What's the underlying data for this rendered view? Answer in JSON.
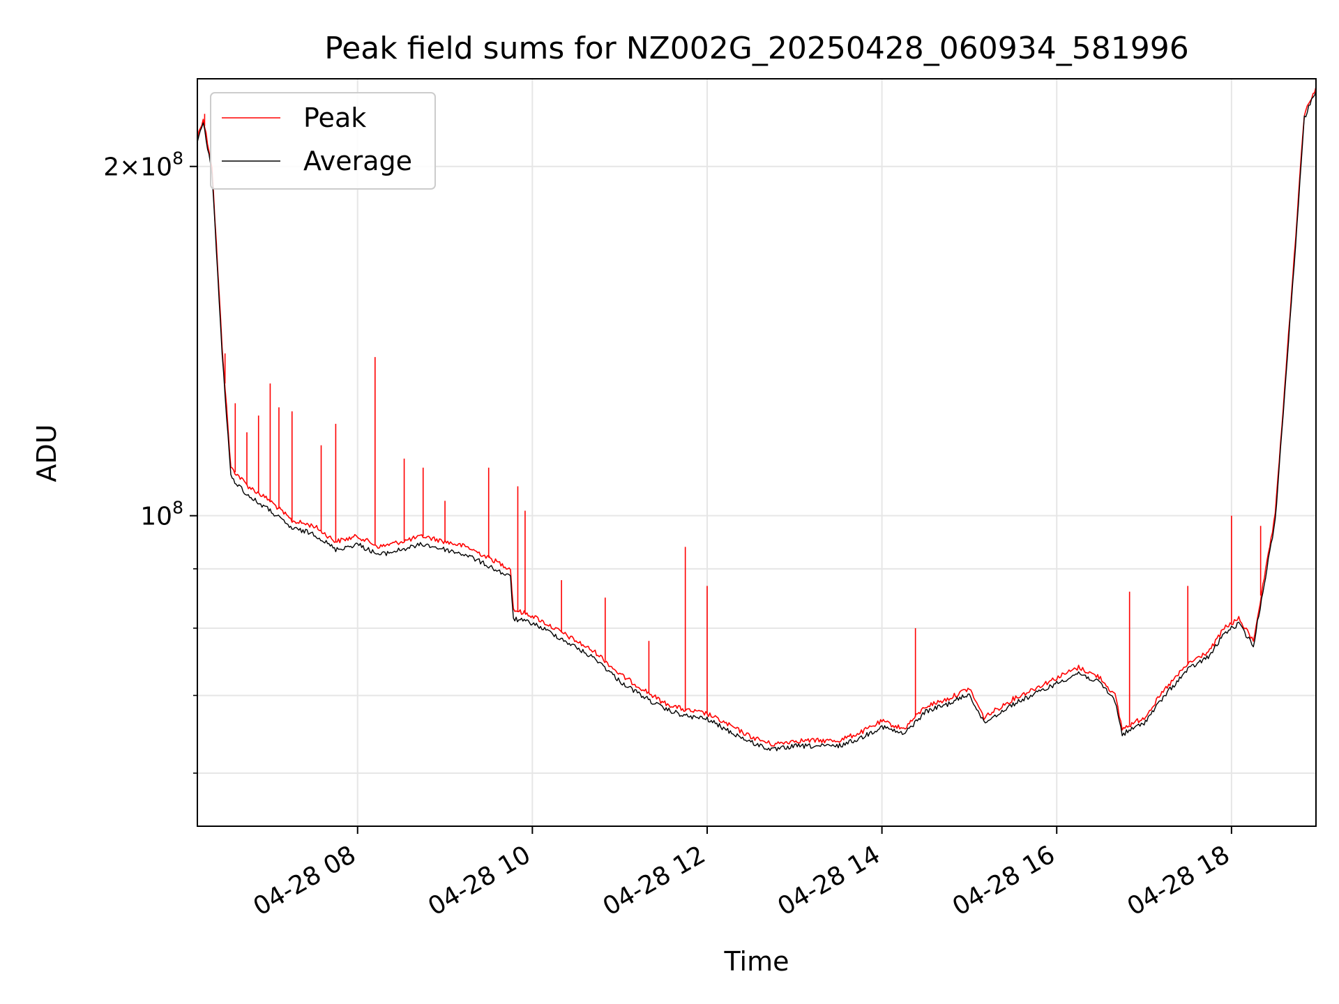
{
  "chart_data": {
    "type": "line",
    "title": "Peak field sums for NZ002G_20250428_060934_581996",
    "xlabel": "Time",
    "ylabel": "ADU",
    "y_scale": "log",
    "ylim": [
      54000000,
      238000000
    ],
    "x_range": [
      "2025-04-28 06:10",
      "2025-04-28 18:58"
    ],
    "x_ticks": [
      "04-28 08",
      "04-28 10",
      "04-28 12",
      "04-28 14",
      "04-28 16",
      "04-28 18"
    ],
    "y_tick_labels": [
      {
        "value": 200000000,
        "mantissa": "2",
        "times": "×",
        "base": "10",
        "exp": "8"
      },
      {
        "value": 100000000,
        "base": "10",
        "exp": "8"
      }
    ],
    "y_minor_ticks": [
      60000000,
      70000000,
      80000000,
      90000000
    ],
    "grid": true,
    "legend_position": "top-left",
    "series": [
      {
        "name": "Peak",
        "color": "#ff0000",
        "points": [
          [
            "2025-04-28 06:10",
            212000000
          ],
          [
            "2025-04-28 06:14",
            220000000
          ],
          [
            "2025-04-28 06:20",
            200000000
          ],
          [
            "2025-04-28 06:27",
            140000000
          ],
          [
            "2025-04-28 06:33",
            110000000
          ],
          [
            "2025-04-28 06:45",
            106000000
          ],
          [
            "2025-04-28 07:00",
            103000000
          ],
          [
            "2025-04-28 07:15",
            99000000
          ],
          [
            "2025-04-28 07:30",
            98000000
          ],
          [
            "2025-04-28 07:45",
            95000000
          ],
          [
            "2025-04-28 08:00",
            96000000
          ],
          [
            "2025-04-28 08:15",
            94000000
          ],
          [
            "2025-04-28 08:30",
            95000000
          ],
          [
            "2025-04-28 08:45",
            96000000
          ],
          [
            "2025-04-28 09:00",
            95000000
          ],
          [
            "2025-04-28 09:15",
            94000000
          ],
          [
            "2025-04-28 09:30",
            92000000
          ],
          [
            "2025-04-28 09:45",
            90000000
          ],
          [
            "2025-04-28 09:47",
            83000000
          ],
          [
            "2025-04-28 10:00",
            82000000
          ],
          [
            "2025-04-28 10:15",
            80000000
          ],
          [
            "2025-04-28 10:30",
            78000000
          ],
          [
            "2025-04-28 10:45",
            76000000
          ],
          [
            "2025-04-28 11:00",
            73000000
          ],
          [
            "2025-04-28 11:15",
            71000000
          ],
          [
            "2025-04-28 11:30",
            69000000
          ],
          [
            "2025-04-28 11:45",
            68000000
          ],
          [
            "2025-04-28 12:00",
            67500000
          ],
          [
            "2025-04-28 12:15",
            66000000
          ],
          [
            "2025-04-28 12:30",
            64500000
          ],
          [
            "2025-04-28 12:45",
            63500000
          ],
          [
            "2025-04-28 13:00",
            64000000
          ],
          [
            "2025-04-28 13:15",
            64000000
          ],
          [
            "2025-04-28 13:30",
            64000000
          ],
          [
            "2025-04-28 13:45",
            65000000
          ],
          [
            "2025-04-28 14:00",
            66500000
          ],
          [
            "2025-04-28 14:15",
            65500000
          ],
          [
            "2025-04-28 14:30",
            68500000
          ],
          [
            "2025-04-28 14:45",
            69500000
          ],
          [
            "2025-04-28 15:00",
            71000000
          ],
          [
            "2025-04-28 15:10",
            67000000
          ],
          [
            "2025-04-28 15:30",
            69500000
          ],
          [
            "2025-04-28 15:45",
            71000000
          ],
          [
            "2025-04-28 16:00",
            72500000
          ],
          [
            "2025-04-28 16:15",
            74000000
          ],
          [
            "2025-04-28 16:30",
            72500000
          ],
          [
            "2025-04-28 16:40",
            70000000
          ],
          [
            "2025-04-28 16:45",
            65500000
          ],
          [
            "2025-04-28 17:00",
            67000000
          ],
          [
            "2025-04-28 17:15",
            71000000
          ],
          [
            "2025-04-28 17:30",
            74500000
          ],
          [
            "2025-04-28 17:45",
            76500000
          ],
          [
            "2025-04-28 17:55",
            80000000
          ],
          [
            "2025-04-28 18:05",
            81500000
          ],
          [
            "2025-04-28 18:15",
            78000000
          ],
          [
            "2025-04-28 18:30",
            100000000
          ],
          [
            "2025-04-28 18:42",
            160000000
          ],
          [
            "2025-04-28 18:50",
            222000000
          ],
          [
            "2025-04-28 18:58",
            234000000
          ]
        ],
        "spikes": [
          [
            "2025-04-28 06:15",
            222000000
          ],
          [
            "2025-04-28 06:29",
            138000000
          ],
          [
            "2025-04-28 06:36",
            125000000
          ],
          [
            "2025-04-28 06:44",
            118000000
          ],
          [
            "2025-04-28 06:52",
            122000000
          ],
          [
            "2025-04-28 07:00",
            130000000
          ],
          [
            "2025-04-28 07:06",
            124000000
          ],
          [
            "2025-04-28 07:15",
            123000000
          ],
          [
            "2025-04-28 07:35",
            115000000
          ],
          [
            "2025-04-28 07:45",
            120000000
          ],
          [
            "2025-04-28 08:12",
            137000000
          ],
          [
            "2025-04-28 08:32",
            112000000
          ],
          [
            "2025-04-28 08:45",
            110000000
          ],
          [
            "2025-04-28 09:00",
            103000000
          ],
          [
            "2025-04-28 09:30",
            110000000
          ],
          [
            "2025-04-28 09:50",
            106000000
          ],
          [
            "2025-04-28 09:55",
            101000000
          ],
          [
            "2025-04-28 10:20",
            88000000
          ],
          [
            "2025-04-28 10:50",
            85000000
          ],
          [
            "2025-04-28 11:20",
            78000000
          ],
          [
            "2025-04-28 11:45",
            94000000
          ],
          [
            "2025-04-28 12:00",
            87000000
          ],
          [
            "2025-04-28 14:23",
            80000000
          ],
          [
            "2025-04-28 16:50",
            86000000
          ],
          [
            "2025-04-28 17:30",
            87000000
          ],
          [
            "2025-04-28 18:00",
            100000000
          ],
          [
            "2025-04-28 18:20",
            98000000
          ]
        ]
      },
      {
        "name": "Average",
        "color": "#000000",
        "points": [
          [
            "2025-04-28 06:10",
            210000000
          ],
          [
            "2025-04-28 06:14",
            218000000
          ],
          [
            "2025-04-28 06:20",
            198000000
          ],
          [
            "2025-04-28 06:27",
            138000000
          ],
          [
            "2025-04-28 06:33",
            108000000
          ],
          [
            "2025-04-28 06:45",
            104000000
          ],
          [
            "2025-04-28 07:00",
            101000000
          ],
          [
            "2025-04-28 07:15",
            97500000
          ],
          [
            "2025-04-28 07:30",
            96500000
          ],
          [
            "2025-04-28 07:45",
            93500000
          ],
          [
            "2025-04-28 08:00",
            94500000
          ],
          [
            "2025-04-28 08:15",
            92500000
          ],
          [
            "2025-04-28 08:30",
            93500000
          ],
          [
            "2025-04-28 08:45",
            94500000
          ],
          [
            "2025-04-28 09:00",
            93500000
          ],
          [
            "2025-04-28 09:15",
            92500000
          ],
          [
            "2025-04-28 09:30",
            90500000
          ],
          [
            "2025-04-28 09:45",
            88500000
          ],
          [
            "2025-04-28 09:47",
            81500000
          ],
          [
            "2025-04-28 10:00",
            80800000
          ],
          [
            "2025-04-28 10:15",
            79000000
          ],
          [
            "2025-04-28 10:30",
            77000000
          ],
          [
            "2025-04-28 10:45",
            75000000
          ],
          [
            "2025-04-28 11:00",
            72000000
          ],
          [
            "2025-04-28 11:15",
            70000000
          ],
          [
            "2025-04-28 11:30",
            68200000
          ],
          [
            "2025-04-28 11:45",
            67200000
          ],
          [
            "2025-04-28 12:00",
            66800000
          ],
          [
            "2025-04-28 12:15",
            65200000
          ],
          [
            "2025-04-28 12:30",
            63800000
          ],
          [
            "2025-04-28 12:45",
            62800000
          ],
          [
            "2025-04-28 13:00",
            63300000
          ],
          [
            "2025-04-28 13:15",
            63300000
          ],
          [
            "2025-04-28 13:30",
            63300000
          ],
          [
            "2025-04-28 13:45",
            64300000
          ],
          [
            "2025-04-28 14:00",
            65800000
          ],
          [
            "2025-04-28 14:15",
            64800000
          ],
          [
            "2025-04-28 14:30",
            67800000
          ],
          [
            "2025-04-28 14:45",
            68800000
          ],
          [
            "2025-04-28 15:00",
            70200000
          ],
          [
            "2025-04-28 15:10",
            66300000
          ],
          [
            "2025-04-28 15:30",
            68800000
          ],
          [
            "2025-04-28 15:45",
            70200000
          ],
          [
            "2025-04-28 16:00",
            71700000
          ],
          [
            "2025-04-28 16:15",
            73200000
          ],
          [
            "2025-04-28 16:30",
            71700000
          ],
          [
            "2025-04-28 16:40",
            69300000
          ],
          [
            "2025-04-28 16:45",
            64800000
          ],
          [
            "2025-04-28 17:00",
            66300000
          ],
          [
            "2025-04-28 17:15",
            70200000
          ],
          [
            "2025-04-28 17:30",
            73700000
          ],
          [
            "2025-04-28 17:45",
            75700000
          ],
          [
            "2025-04-28 17:55",
            79200000
          ],
          [
            "2025-04-28 18:05",
            80700000
          ],
          [
            "2025-04-28 18:15",
            77200000
          ],
          [
            "2025-04-28 18:30",
            99000000
          ],
          [
            "2025-04-28 18:42",
            158000000
          ],
          [
            "2025-04-28 18:50",
            220000000
          ],
          [
            "2025-04-28 18:58",
            233000000
          ]
        ]
      }
    ]
  }
}
